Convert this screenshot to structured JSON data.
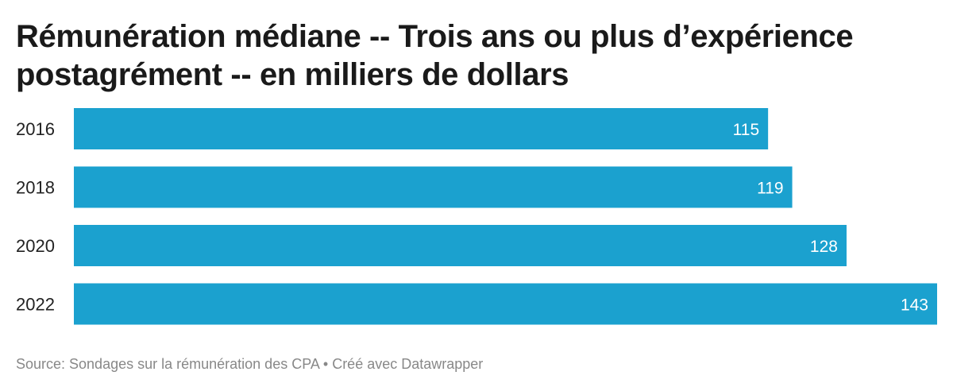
{
  "chart_data": {
    "type": "bar",
    "orientation": "horizontal",
    "title": "Rémunération médiane -- Trois ans ou plus d’expérience postagrément -- en milliers de dollars",
    "categories": [
      "2016",
      "2018",
      "2020",
      "2022"
    ],
    "values": [
      115,
      119,
      128,
      143
    ],
    "value_labels": [
      "115",
      "119",
      "128",
      "143"
    ],
    "xlabel": "",
    "ylabel": "",
    "xlim": [
      0,
      143
    ],
    "grid": false,
    "bar_color": "#1ba1cf",
    "source": "Source: Sondages sur la rémunération des CPA • Créé avec Datawrapper"
  }
}
